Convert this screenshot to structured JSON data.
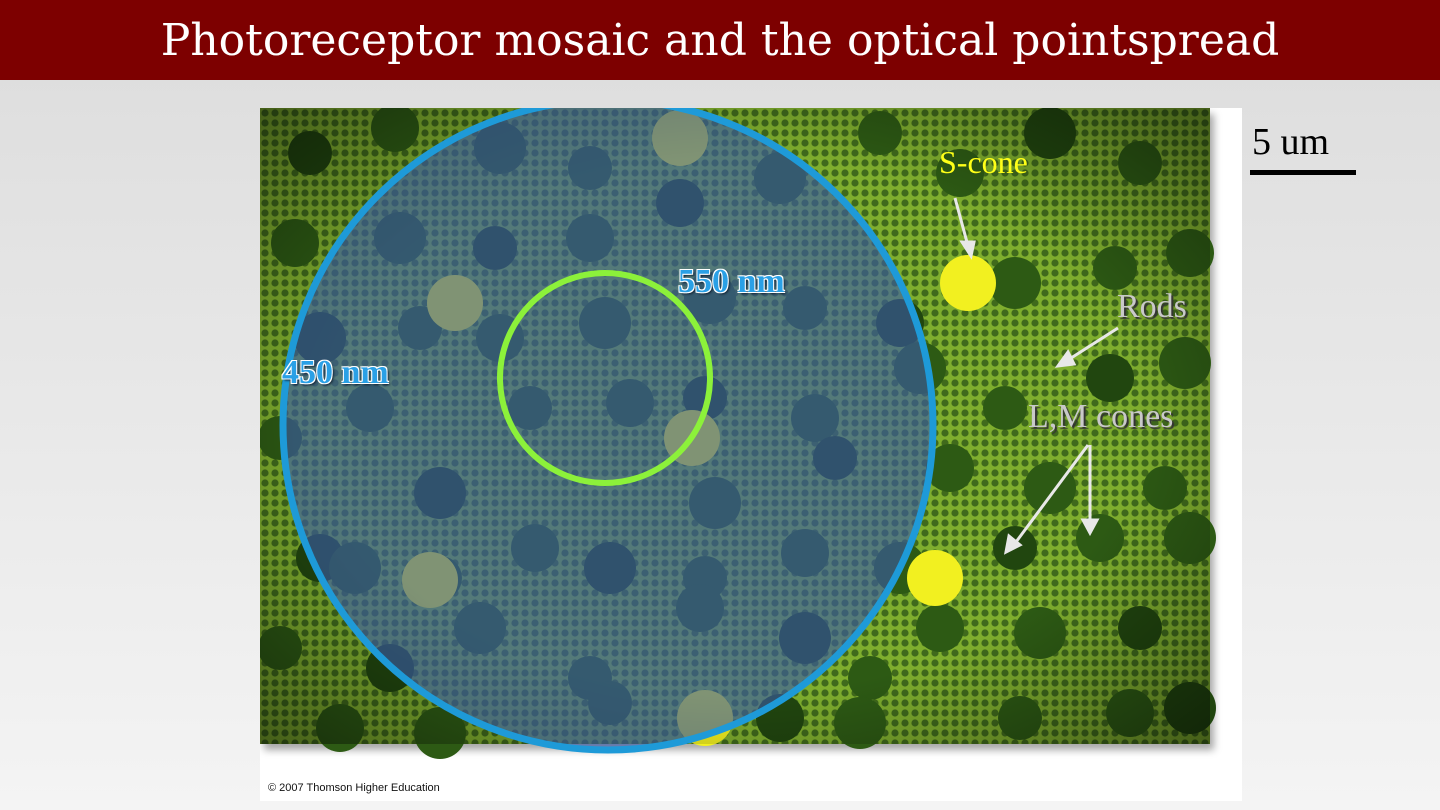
{
  "slide": {
    "title": "Photoreceptor mosaic and the optical pointspread"
  },
  "scale": {
    "label": "5 um"
  },
  "figure": {
    "label_450": "450 nm",
    "label_550": "550 nm",
    "label_scone": "S-cone",
    "label_rods": "Rods",
    "label_lm": "L,M cones",
    "copyright": "© 2007 Thomson Higher Education"
  },
  "colors": {
    "title_bar": "#7d0000",
    "circle_450": "#1e9ad8",
    "circle_550": "#8cf13a",
    "s_cone": "#f2f020",
    "background_green": "#4f7a22"
  }
}
